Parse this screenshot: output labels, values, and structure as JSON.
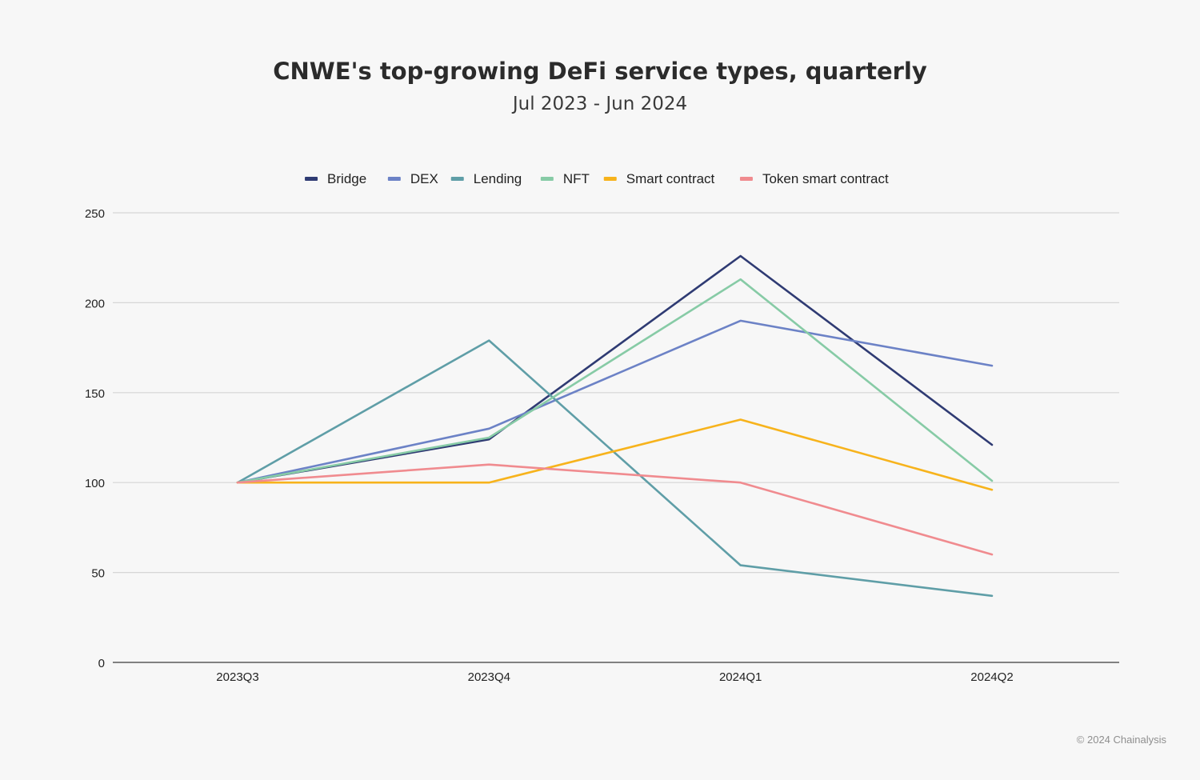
{
  "chart_data": {
    "type": "line",
    "title": "CNWE's top-growing DeFi service types, quarterly",
    "subtitle": "Jul 2023 - Jun 2024",
    "xlabel": "",
    "ylabel": "",
    "categories": [
      "2023Q3",
      "2023Q4",
      "2024Q1",
      "2024Q2"
    ],
    "ylim": [
      0,
      250
    ],
    "yticks": [
      0,
      50,
      100,
      150,
      200,
      250
    ],
    "grid": true,
    "legend_position": "top",
    "series": [
      {
        "name": "Bridge",
        "color": "#2f3b73",
        "values": [
          100,
          124,
          226,
          121
        ]
      },
      {
        "name": "DEX",
        "color": "#6c82c6",
        "values": [
          100,
          130,
          190,
          165
        ]
      },
      {
        "name": "Lending",
        "color": "#5f9ea7",
        "values": [
          100,
          179,
          54,
          37
        ]
      },
      {
        "name": "NFT",
        "color": "#87cba6",
        "values": [
          100,
          125,
          213,
          101
        ]
      },
      {
        "name": "Smart contract",
        "color": "#f7b31c",
        "values": [
          100,
          100,
          135,
          96
        ]
      },
      {
        "name": "Token smart contract",
        "color": "#f08b8f",
        "values": [
          100,
          110,
          100,
          60
        ]
      }
    ]
  },
  "footer": {
    "credit": "© 2024 Chainalysis"
  }
}
